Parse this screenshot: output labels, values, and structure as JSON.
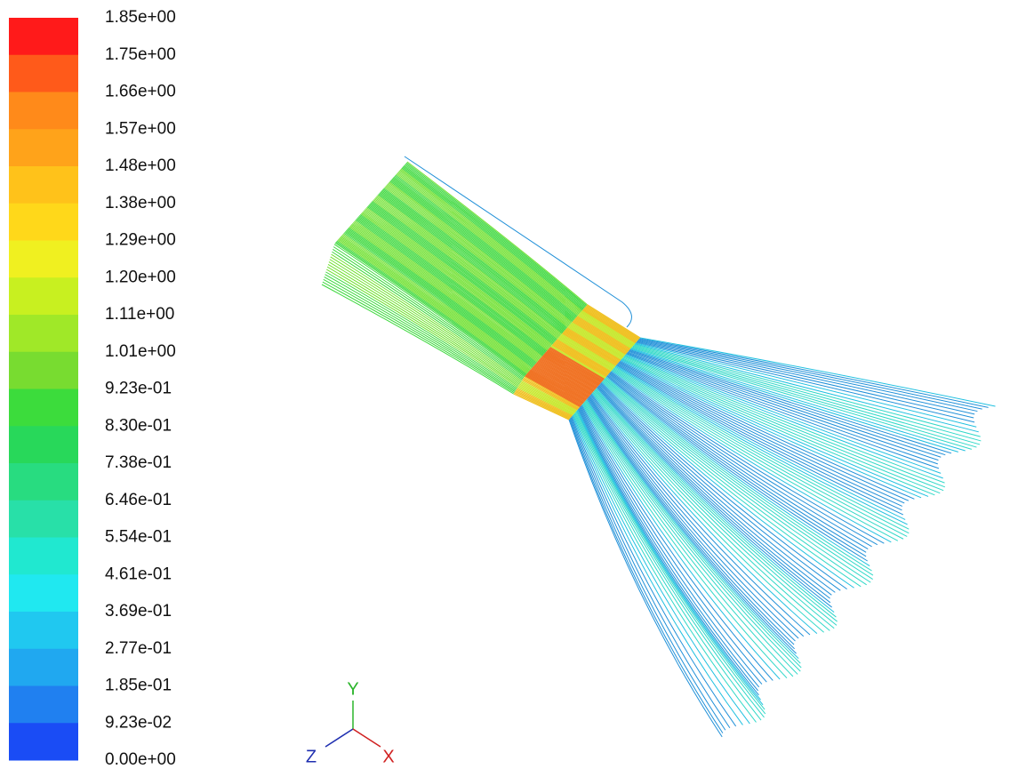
{
  "legend": {
    "labels": [
      "1.85e+00",
      "1.75e+00",
      "1.66e+00",
      "1.57e+00",
      "1.48e+00",
      "1.38e+00",
      "1.29e+00",
      "1.20e+00",
      "1.11e+00",
      "1.01e+00",
      "9.23e-01",
      "8.30e-01",
      "7.38e-01",
      "6.46e-01",
      "5.54e-01",
      "4.61e-01",
      "3.69e-01",
      "2.77e-01",
      "1.85e-01",
      "9.23e-02",
      "0.00e+00"
    ]
  },
  "triad": {
    "y": "Y",
    "z": "Z",
    "x": "X"
  }
}
